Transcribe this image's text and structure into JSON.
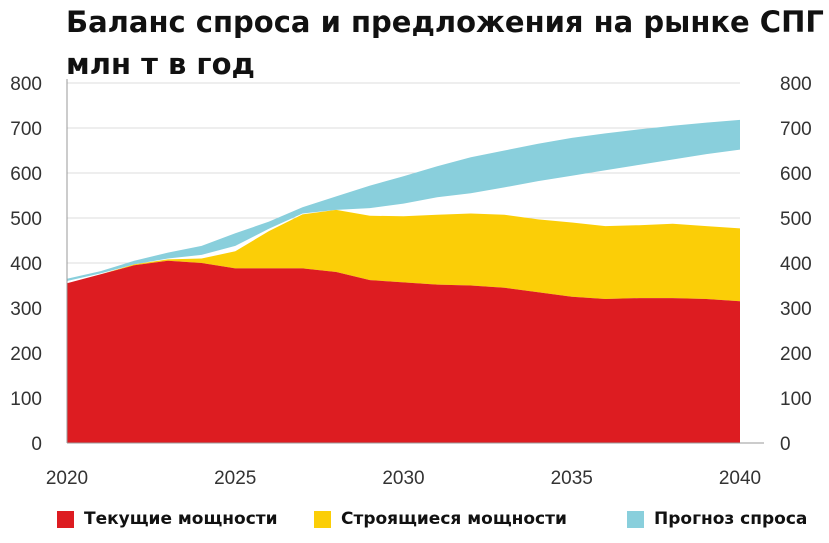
{
  "chart_data": {
    "type": "area",
    "title": "Баланс спроса и предложения на рынке СПГ",
    "subtitle": "млн т в год",
    "x": [
      2020,
      2021,
      2022,
      2023,
      2024,
      2025,
      2026,
      2027,
      2028,
      2029,
      2030,
      2031,
      2032,
      2033,
      2034,
      2035,
      2036,
      2037,
      2038,
      2039,
      2040
    ],
    "xticks": [
      "2020",
      "2025",
      "2030",
      "2035",
      "2040"
    ],
    "xlim": [
      2020,
      2040
    ],
    "ylim": [
      0,
      800
    ],
    "yticks": [
      "0",
      "100",
      "200",
      "300",
      "400",
      "500",
      "600",
      "700",
      "800"
    ],
    "grid": "horizontal",
    "series": [
      {
        "name": "Текущие мощности",
        "color": "#dd1c21",
        "values": [
          355,
          375,
          395,
          405,
          400,
          388,
          388,
          388,
          380,
          362,
          357,
          352,
          350,
          345,
          335,
          325,
          320,
          322,
          322,
          320,
          315
        ]
      },
      {
        "name": "Строящиеся мощности",
        "color": "#fbce07",
        "values": [
          0,
          0,
          2,
          3,
          10,
          38,
          83,
          120,
          138,
          143,
          147,
          155,
          160,
          162,
          162,
          165,
          162,
          162,
          165,
          162,
          162
        ]
      },
      {
        "name": "Прогноз спроса",
        "color": "#89cfdc",
        "lower": [
          360,
          377,
          397,
          410,
          418,
          438,
          476,
          510,
          518,
          522,
          532,
          546,
          555,
          568,
          582,
          594,
          606,
          618,
          630,
          642,
          652
        ],
        "upper": [
          365,
          382,
          405,
          423,
          438,
          466,
          492,
          524,
          548,
          572,
          593,
          615,
          635,
          650,
          665,
          678,
          688,
          697,
          705,
          712,
          718
        ]
      }
    ],
    "legend": [
      "Текущие мощности",
      "Строящиеся мощности",
      "Прогноз спроса"
    ],
    "legend_position": "bottom"
  }
}
